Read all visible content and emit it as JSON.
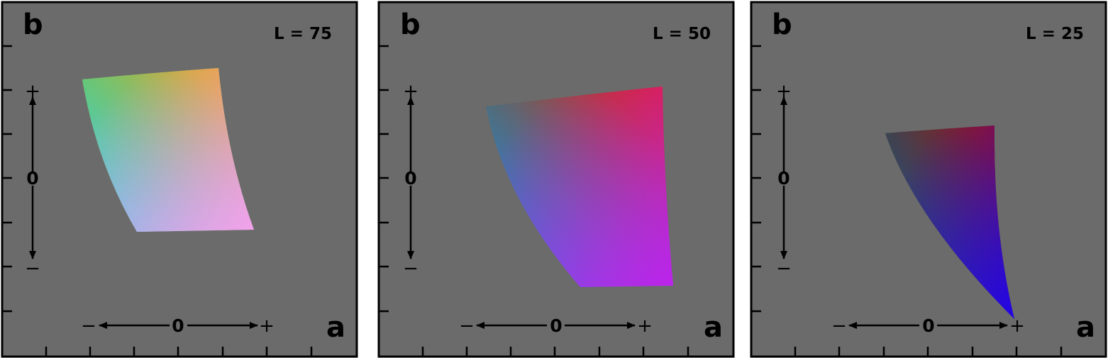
{
  "axes": {
    "horizontal": "a",
    "vertical": "b"
  },
  "signs": {
    "plus": "+",
    "minus": "−",
    "zero": "0"
  },
  "panels": [
    {
      "id": "l75",
      "lightness_label": "L = 75"
    },
    {
      "id": "l50",
      "lightness_label": "L = 50"
    },
    {
      "id": "l25",
      "lightness_label": "L = 25"
    }
  ],
  "colors": {
    "background": "#6b6b6b",
    "frame": "#000000",
    "l75": {
      "top_left": "#40d820",
      "top_right": "#f5a020",
      "bottom_left": "#30d0f8",
      "bottom_right": "#f8a0f0"
    },
    "l50": {
      "top_left": "#208c20",
      "top_right": "#ee1818",
      "bottom_left": "#2080ff",
      "bottom_right": "#c020f0"
    },
    "l25": {
      "top_left": "#1e5a1e",
      "top_right": "#b00e0e",
      "bottom_left": "#1850a8",
      "bottom_right": "#2000ee"
    }
  }
}
